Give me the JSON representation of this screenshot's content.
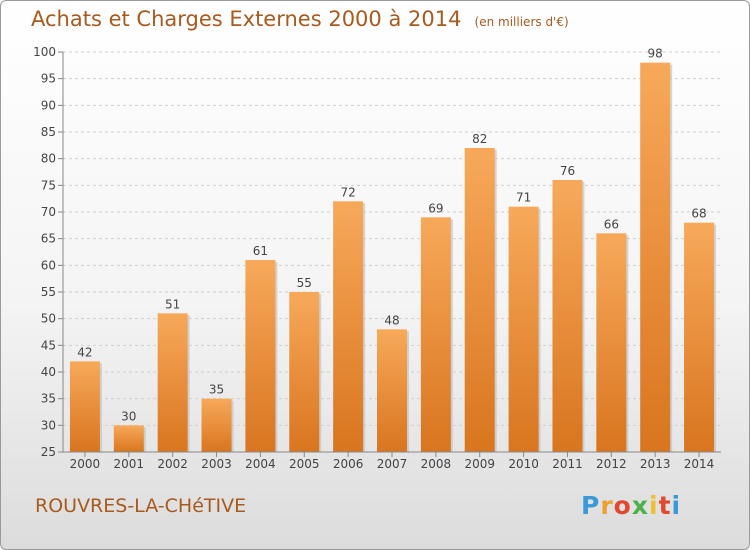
{
  "header": {
    "title": "Achats et Charges Externes 2000 à 2014",
    "unit": "(en milliers d'€)"
  },
  "footer": {
    "commune": "ROUVRES-LA-CHéTIVE",
    "logo_letters": [
      "P",
      "r",
      "o",
      "x",
      "i",
      "t",
      "i"
    ],
    "logo_colors": [
      "#3a9ad9",
      "#f0a030",
      "#e0482f",
      "#4bb14a",
      "#f0c030",
      "#e0482f",
      "#3a9ad9"
    ]
  },
  "colors": {
    "bar": "#f39a3c",
    "text": "#a85a1e"
  },
  "chart_data": {
    "type": "bar",
    "categories": [
      "2000",
      "2001",
      "2002",
      "2003",
      "2004",
      "2005",
      "2006",
      "2007",
      "2008",
      "2009",
      "2010",
      "2011",
      "2012",
      "2013",
      "2014"
    ],
    "values": [
      42,
      30,
      51,
      35,
      61,
      55,
      72,
      48,
      69,
      82,
      71,
      76,
      66,
      98,
      68
    ],
    "ylim": [
      25,
      100
    ],
    "yticks": [
      25,
      30,
      35,
      40,
      45,
      50,
      55,
      60,
      65,
      70,
      75,
      80,
      85,
      90,
      95,
      100
    ],
    "grid": true,
    "data_labels": true
  }
}
